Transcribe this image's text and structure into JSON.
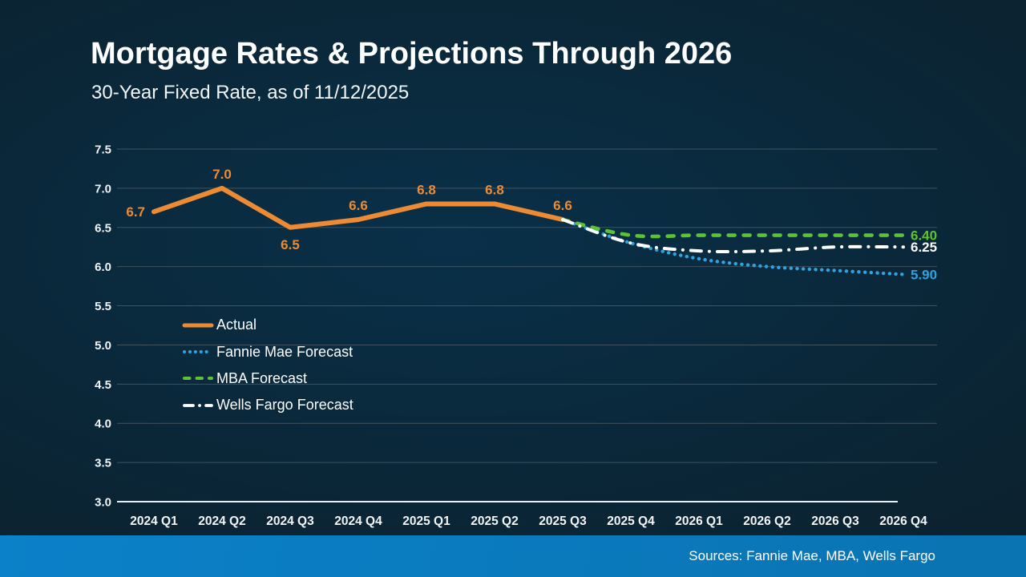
{
  "page": {
    "title": "Mortgage Rates & Projections Through 2026",
    "subtitle": "30-Year Fixed Rate, as of 11/12/2025",
    "footer": "Sources: Fannie Mae, MBA, Wells Fargo"
  },
  "colors": {
    "background": "#0A2738",
    "footer_bar": "#0B7CC1",
    "gridline": "#42525E",
    "axis_line": "#E9EEF2",
    "tick_text": "#F2F5F7",
    "title_text": "#FFFFFF"
  },
  "chart_data": {
    "type": "line",
    "title": "Mortgage Rates & Projections Through 2026",
    "subtitle": "30-Year Fixed Rate, as of 11/12/2025",
    "categories": [
      "2024 Q1",
      "2024 Q2",
      "2024 Q3",
      "2024 Q4",
      "2025 Q1",
      "2025 Q2",
      "2025 Q3",
      "2025 Q4",
      "2026 Q1",
      "2026 Q2",
      "2026 Q3",
      "2026 Q4"
    ],
    "ylim": [
      3.0,
      7.5
    ],
    "yticks": [
      "7.5",
      "7.0",
      "6.5",
      "6.0",
      "5.5",
      "5.0",
      "4.5",
      "4.0",
      "3.5",
      "3.0"
    ],
    "grid": true,
    "legend_position": "middle-left",
    "series": [
      {
        "name": "Actual",
        "color": "#EC8B33",
        "style": "solid",
        "start_index": 0,
        "values": [
          6.7,
          7.0,
          6.5,
          6.6,
          6.8,
          6.8,
          6.6
        ],
        "point_labels": [
          "6.7",
          "7.0",
          "6.5",
          "6.6",
          "6.8",
          "6.8",
          "6.6"
        ],
        "label_placement": [
          "left",
          "above",
          "below",
          "above",
          "above",
          "above",
          "above"
        ]
      },
      {
        "name": "Fannie Mae Forecast",
        "color": "#2FA3DF",
        "style": "dotted",
        "start_index": 6,
        "values": [
          6.6,
          6.3,
          6.1,
          6.0,
          5.95,
          5.9
        ],
        "end_label": "5.90"
      },
      {
        "name": "MBA Forecast",
        "color": "#5BC334",
        "style": "dashed",
        "start_index": 6,
        "values": [
          6.6,
          6.4,
          6.4,
          6.4,
          6.4,
          6.4
        ],
        "end_label": "6.40"
      },
      {
        "name": "Wells Fargo Forecast",
        "color": "#FFFFFF",
        "style": "dashdot",
        "start_index": 6,
        "values": [
          6.6,
          6.3,
          6.2,
          6.2,
          6.25,
          6.25
        ],
        "end_label": "6.25"
      }
    ]
  }
}
